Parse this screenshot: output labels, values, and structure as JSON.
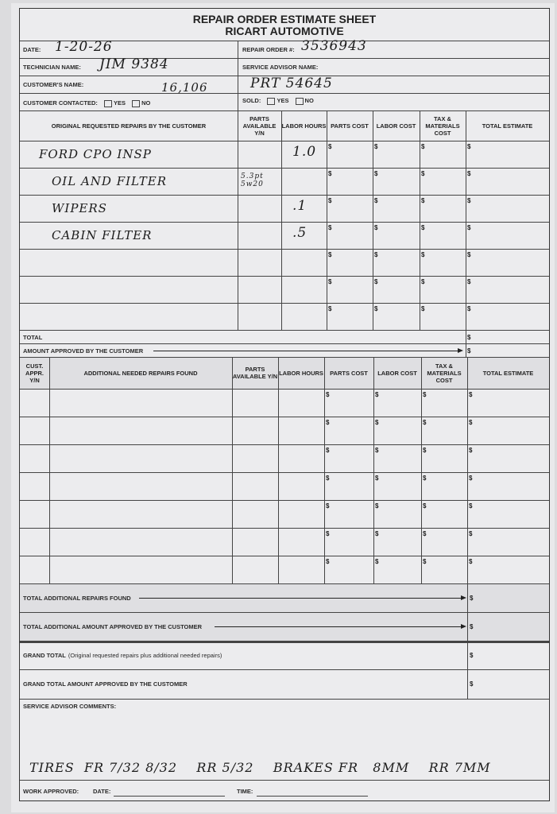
{
  "header": {
    "title": "REPAIR ORDER ESTIMATE SHEET",
    "subtitle": "RICART AUTOMOTIVE"
  },
  "info": {
    "date_label": "DATE:",
    "date_value": "1-20-26",
    "repair_order_label": "REPAIR ORDER #:",
    "repair_order_value": "3536943",
    "technician_label": "TECHNICIAN NAME:",
    "technician_value": "JIM 9384",
    "service_advisor_label": "SERVICE ADVISOR NAME:",
    "customer_name_label": "CUSTOMER'S NAME:",
    "customer_name_value": "16,106",
    "service_advisor_value": "PRT 54645",
    "contacted_label": "CUSTOMER CONTACTED:",
    "yes_label": "YES",
    "no_label": "NO",
    "sold_label": "SOLD:"
  },
  "original": {
    "headers": [
      "ORIGINAL REQUESTED REPAIRS BY THE CUSTOMER",
      "PARTS AVAILABLE Y/N",
      "LABOR HOURS",
      "PARTS COST",
      "LABOR COST",
      "TAX & MATERIALS COST",
      "TOTAL ESTIMATE"
    ],
    "rows": [
      {
        "desc": "FORD CPO INSP",
        "parts": "",
        "hours": "1.0"
      },
      {
        "desc": "OIL AND FILTER",
        "parts": "5.3pt 5w20",
        "hours": ""
      },
      {
        "desc": "WIPERS",
        "parts": "",
        "hours": ".1"
      },
      {
        "desc": "CABIN FILTER",
        "parts": "",
        "hours": ".5"
      },
      {
        "desc": "",
        "parts": "",
        "hours": ""
      },
      {
        "desc": "",
        "parts": "",
        "hours": ""
      },
      {
        "desc": "",
        "parts": "",
        "hours": ""
      }
    ],
    "total_label": "TOTAL",
    "approved_label": "AMOUNT APPROVED BY THE CUSTOMER"
  },
  "additional": {
    "headers": [
      "CUST. APPR. Y/N",
      "ADDITIONAL NEEDED REPAIRS FOUND",
      "PARTS AVAILABLE Y/N",
      "LABOR HOURS",
      "PARTS COST",
      "LABOR COST",
      "TAX & MATERIALS COST",
      "TOTAL ESTIMATE"
    ],
    "row_count": 7,
    "total_label": "TOTAL ADDITIONAL REPAIRS FOUND",
    "approved_label": "TOTAL ADDITIONAL AMOUNT APPROVED BY THE CUSTOMER"
  },
  "grand": {
    "total_label": "GRAND TOTAL",
    "total_note": "(Original requested repairs plus additional needed repairs)",
    "approved_label": "GRAND TOTAL AMOUNT APPROVED BY THE CUSTOMER"
  },
  "comments": {
    "label": "SERVICE ADVISOR COMMENTS:",
    "value": "TIRES  FR 7/32 8/32    RR 5/32    BRAKES FR   8MM    RR 7MM"
  },
  "footer": {
    "work_approved_label": "WORK APPROVED:",
    "date_label": "DATE:",
    "time_label": "TIME:"
  },
  "currency_symbol": "$"
}
